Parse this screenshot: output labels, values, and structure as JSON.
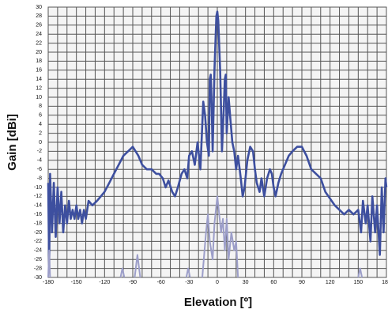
{
  "chart_data": {
    "type": "line",
    "xlabel": "Elevation [º]",
    "ylabel": "Gain [dBi]",
    "xlim": [
      -180,
      180
    ],
    "ylim": [
      -30,
      30
    ],
    "xticks": [
      -180,
      -150,
      -120,
      -90,
      -60,
      -30,
      0,
      30,
      60,
      90,
      120,
      150,
      180
    ],
    "yticks": [
      -30,
      -28,
      -26,
      -24,
      -22,
      -20,
      -18,
      -16,
      -14,
      -12,
      -10,
      -8,
      -6,
      -4,
      -2,
      0,
      2,
      4,
      6,
      8,
      10,
      12,
      14,
      16,
      18,
      20,
      22,
      24,
      26,
      28,
      30
    ],
    "xgrid": [
      -170,
      -160,
      -140,
      -130,
      -110,
      -100,
      -80,
      -70,
      -50,
      -40,
      -20,
      -10,
      10,
      20,
      40,
      50,
      70,
      80,
      100,
      110,
      130,
      140,
      160,
      170
    ],
    "grid": true,
    "series": [
      {
        "color": "#3d4f9f",
        "x": [
          -180,
          -179,
          -178,
          -176,
          -174,
          -172,
          -170,
          -168,
          -166,
          -164,
          -162,
          -160,
          -158,
          -156,
          -154,
          -152,
          -150,
          -148,
          -146,
          -144,
          -142,
          -140,
          -137,
          -133,
          -128,
          -124,
          -120,
          -115,
          -110,
          -105,
          -100,
          -95,
          -90,
          -87,
          -84,
          -80,
          -75,
          -70,
          -65,
          -62,
          -58,
          -55,
          -52,
          -48,
          -45,
          -42,
          -38,
          -35,
          -32,
          -30,
          -27,
          -24,
          -21,
          -18,
          -15,
          -13,
          -11,
          -9,
          -8,
          -7,
          -6,
          -5,
          -3,
          -1,
          0,
          1,
          3,
          5,
          7,
          8,
          9,
          10,
          12,
          14,
          16,
          18,
          20,
          22,
          25,
          27,
          29,
          32,
          35,
          38,
          40,
          42,
          45,
          47,
          50,
          53,
          56,
          58,
          60,
          62,
          65,
          68,
          72,
          76,
          80,
          85,
          90,
          95,
          100,
          110,
          115,
          125,
          130,
          135,
          140,
          145,
          150,
          153,
          155,
          158,
          160,
          163,
          165,
          168,
          170,
          173,
          175,
          177,
          179,
          180
        ],
        "values": [
          -9,
          -28,
          -7,
          -20,
          -9,
          -21,
          -10,
          -18,
          -11,
          -20,
          -14,
          -18,
          -13,
          -17,
          -15,
          -17,
          -14,
          -17,
          -15,
          -18,
          -15,
          -17,
          -13,
          -14,
          -13,
          -12,
          -11,
          -9,
          -7,
          -5,
          -3,
          -2,
          -1,
          -2,
          -3,
          -5,
          -6,
          -6,
          -7,
          -7,
          -8,
          -10,
          -8.5,
          -11,
          -12,
          -10,
          -7,
          -6,
          -8,
          -3,
          -2,
          -5,
          0,
          -6,
          9,
          6,
          0,
          -3,
          14,
          15,
          8,
          -2,
          16,
          28,
          29,
          27,
          16,
          -2,
          8,
          14,
          15,
          2,
          10,
          5,
          0,
          -2,
          -6,
          -3,
          -8,
          -12,
          -10,
          -4,
          -1,
          -2,
          -6,
          -9,
          -11,
          -8,
          -12,
          -8,
          -6,
          -7,
          -10,
          -12,
          -9,
          -7,
          -5,
          -3,
          -2,
          -1,
          -1,
          -3,
          -6,
          -8,
          -11,
          -14,
          -15,
          -16,
          -15,
          -16,
          -15,
          -20,
          -13,
          -18,
          -14,
          -22,
          -12,
          -20,
          -14,
          -25,
          -10,
          -20,
          -8,
          -10
        ]
      },
      {
        "color": "#9c9ec9",
        "x": [
          -180,
          -179,
          -178,
          -120,
          -103,
          -101,
          -99,
          -95,
          -88,
          -85,
          -82,
          -60,
          -33,
          -31,
          -29,
          -20,
          -16,
          -12,
          -10,
          -8,
          -5,
          -3,
          0,
          2,
          4,
          6,
          8,
          10,
          12,
          15,
          18,
          20,
          22,
          100,
          150,
          152,
          154
        ],
        "values": [
          -30,
          -24,
          -30,
          null,
          -30,
          -28,
          -30,
          null,
          -30,
          -25,
          -30,
          null,
          -30,
          -28,
          -30,
          null,
          -30,
          -20,
          -16,
          -22,
          -26,
          -18,
          -12,
          -16,
          -20,
          -17,
          -24,
          -17,
          -26,
          -20,
          -24,
          -22,
          -30,
          null,
          -30,
          -28,
          -30
        ]
      }
    ]
  }
}
